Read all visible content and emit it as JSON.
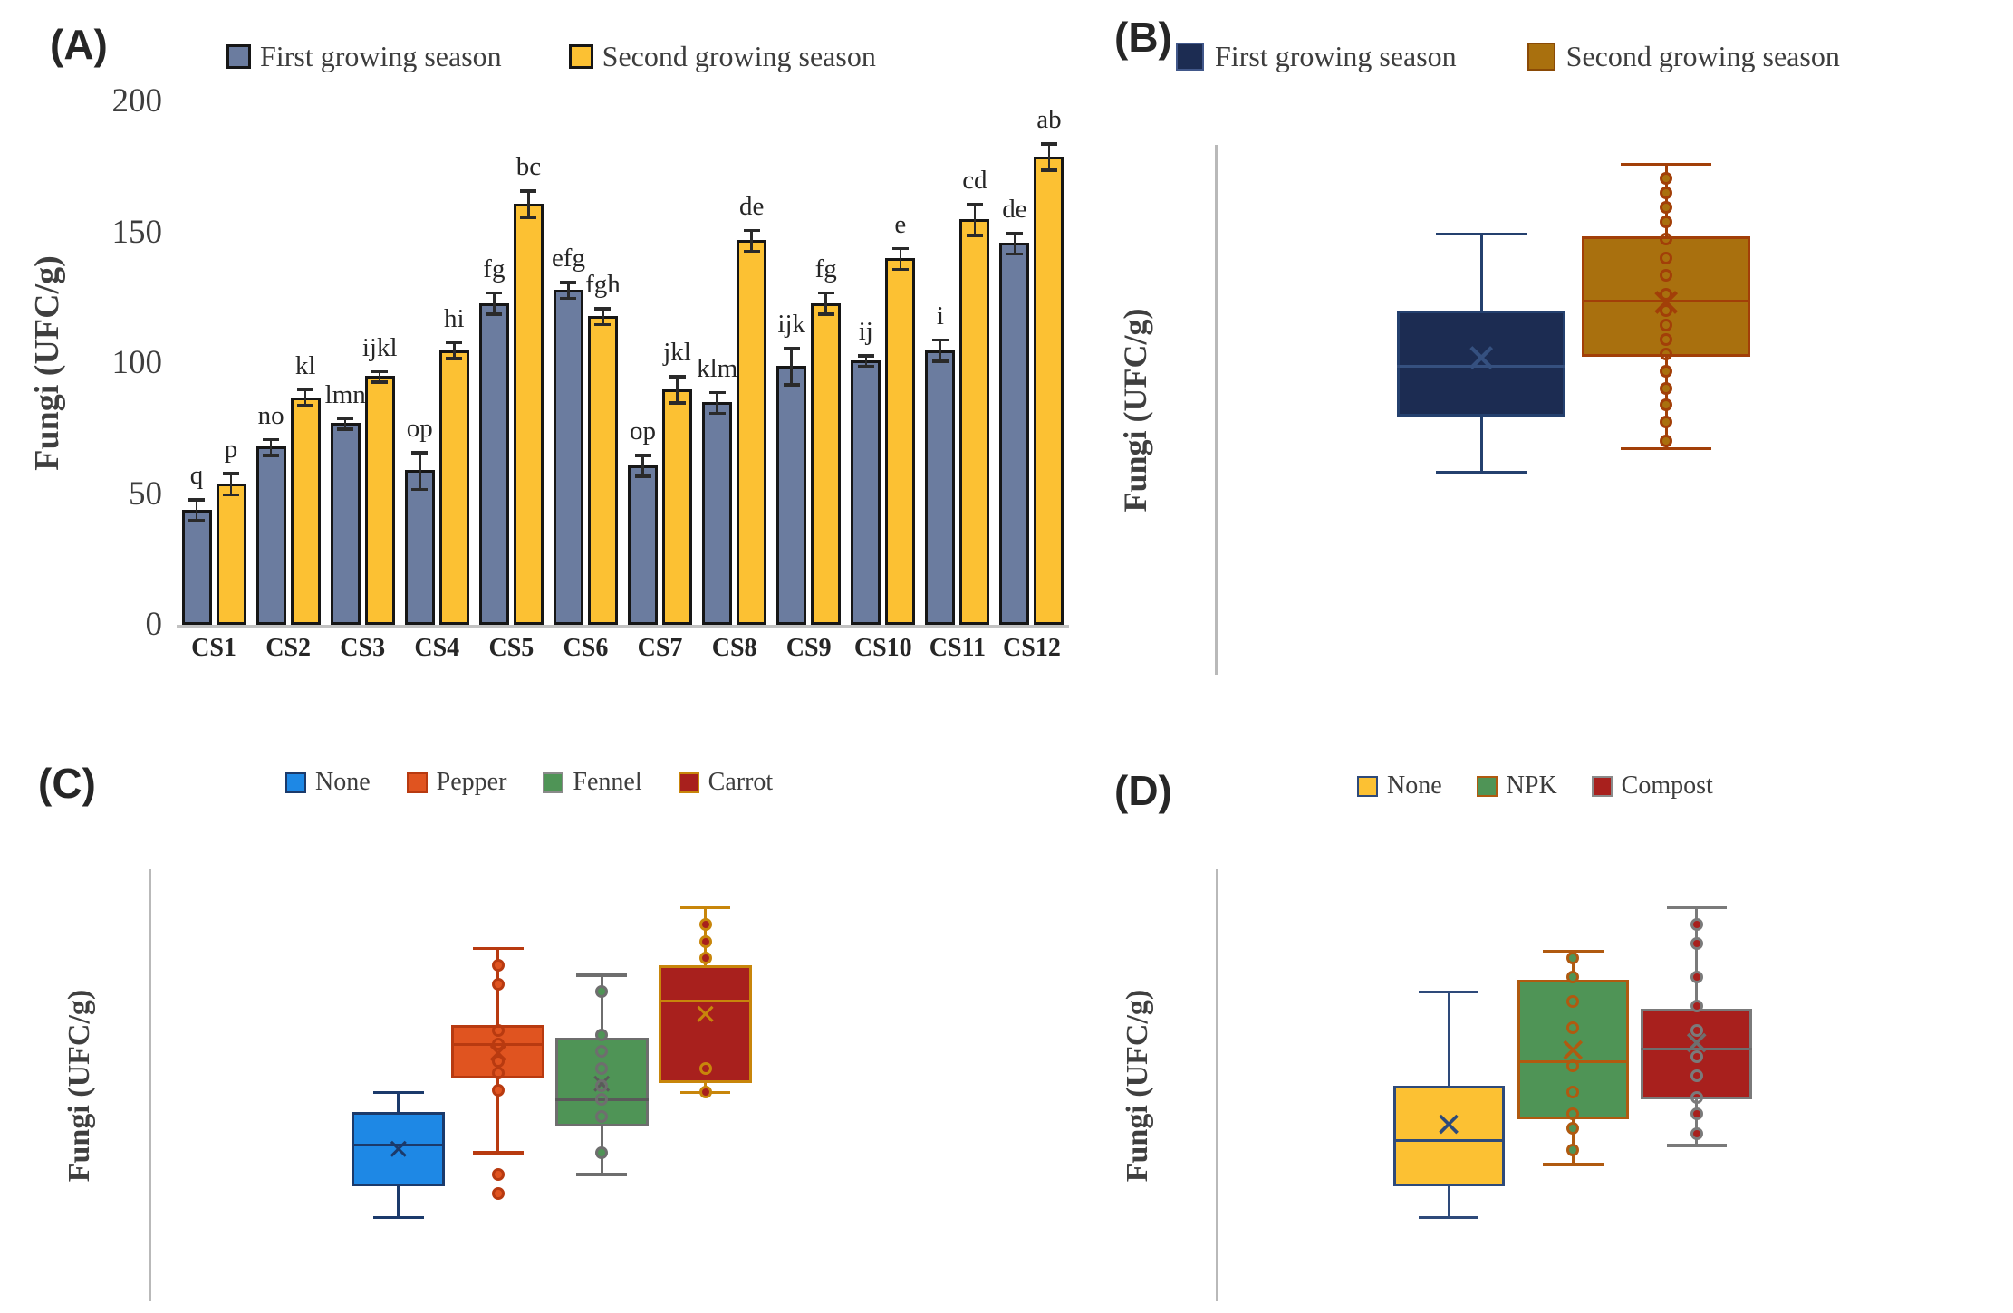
{
  "figure_title": "",
  "axis_color": "#b9b9b9",
  "panels": [
    {
      "label": "(A)",
      "ylabel": "Fungi (UFC/g)",
      "legend": [
        {
          "label": "First growing season",
          "fill": "#6b7c9f",
          "border": "#161616"
        },
        {
          "label": "Second growing season",
          "fill": "#fcc133",
          "border": "#161616"
        }
      ]
    },
    {
      "label": "(B)",
      "ylabel": "Fungi (UFC/g)",
      "legend": [
        {
          "label": "First growing season",
          "fill": "#1c2c52",
          "border": "#42588a"
        },
        {
          "label": "Second growing season",
          "fill": "#a9700e",
          "border": "#8a4a06"
        }
      ]
    },
    {
      "label": "(C)",
      "ylabel": "Fungi (UFC/g)",
      "legend": [
        {
          "label": "None",
          "fill": "#1e88e5",
          "border": "#1b3a6b"
        },
        {
          "label": "Pepper",
          "fill": "#e05420",
          "border": "#b83a10"
        },
        {
          "label": "Fennel",
          "fill": "#4f9456",
          "border": "#8a8a8a"
        },
        {
          "label": "Carrot",
          "fill": "#a8201d",
          "border": "#c8860b"
        }
      ]
    },
    {
      "label": "(D)",
      "ylabel": "Fungi (UFC/g)",
      "legend": [
        {
          "label": "None",
          "fill": "#fcc133",
          "border": "#2e4a7a"
        },
        {
          "label": "NPK",
          "fill": "#4f9456",
          "border": "#b05a10"
        },
        {
          "label": "Compost",
          "fill": "#a8201d",
          "border": "#8a8a8a"
        }
      ]
    }
  ],
  "chart_data": [
    {
      "type": "bar",
      "panel": "A",
      "title": "",
      "xlabel": "",
      "ylabel": "Fungi (UFC/g)",
      "ylim": [
        0,
        200
      ],
      "yticks": [
        0,
        50,
        100,
        150,
        200
      ],
      "grid": false,
      "legend_position": "top",
      "categories": [
        "CS1",
        "CS2",
        "CS3",
        "CS4",
        "CS5",
        "CS6",
        "CS7",
        "CS8",
        "CS9",
        "CS10",
        "CS11",
        "CS12"
      ],
      "series": [
        {
          "name": "First growing season",
          "color": "#6b7c9f",
          "edge": "#161616",
          "values": [
            44,
            68,
            77,
            59,
            123,
            128,
            61,
            85,
            99,
            101,
            105,
            146
          ],
          "errors": [
            4,
            3,
            2,
            7,
            4,
            3,
            4,
            4,
            7,
            2,
            4,
            4
          ],
          "letters": [
            "q",
            "no",
            "lmn",
            "op",
            "fg",
            "efg",
            "op",
            "klm",
            "ijk",
            "ij",
            "i",
            "de"
          ]
        },
        {
          "name": "Second growing season",
          "color": "#fcc133",
          "edge": "#161616",
          "values": [
            54,
            87,
            95,
            105,
            161,
            118,
            90,
            147,
            123,
            140,
            155,
            179
          ],
          "errors": [
            4,
            3,
            2,
            3,
            5,
            3,
            5,
            4,
            4,
            4,
            6,
            5
          ],
          "letters": [
            "p",
            "kl",
            "ijkl",
            "hi",
            "bc",
            "fgh",
            "jkl",
            "de",
            "fg",
            "e",
            "cd",
            "ab"
          ]
        }
      ]
    },
    {
      "type": "box",
      "panel": "B",
      "ylabel": "Fungi (UFC/g)",
      "ylim": [
        0,
        220
      ],
      "grid": false,
      "legend_position": "top",
      "series": [
        {
          "name": "First growing season",
          "fill": "#1c2c52",
          "border": "#24406e",
          "whisker": "#24406e",
          "accent": "#35507f",
          "x": 0.364,
          "box_w": 0.2325,
          "stats": {
            "whisker_low": 84,
            "q1": 107,
            "median": 128,
            "mean": 131,
            "q3": 151,
            "whisker_high": 183
          },
          "dots": [],
          "outliers": []
        },
        {
          "name": "Second growing season",
          "fill": "#a9700e",
          "border": "#a23f08",
          "whisker": "#a23f08",
          "accent": "#a23f08",
          "x": 0.619,
          "box_w": 0.2325,
          "stats": {
            "whisker_low": 94,
            "q1": 132,
            "median": 155,
            "mean": 154,
            "q3": 182,
            "whisker_high": 212
          },
          "dots": [
            206,
            200,
            194,
            188,
            181,
            173,
            166,
            158,
            151,
            145,
            139,
            133,
            126,
            119,
            112,
            105,
            97
          ],
          "outliers": []
        }
      ]
    },
    {
      "type": "box",
      "panel": "C",
      "ylabel": "Fungi (UFC/g)",
      "ylim": [
        0,
        180
      ],
      "grid": false,
      "legend_position": "top",
      "series": [
        {
          "name": "None",
          "fill": "#1e88e5",
          "border": "#1b3a6b",
          "whisker": "#1b3a6b",
          "accent": "#1b3a6b",
          "x": 0.31,
          "box_w": 0.117,
          "stats": {
            "whisker_low": 35,
            "q1": 48,
            "median": 65,
            "mean": 63,
            "q3": 79,
            "whisker_high": 87
          },
          "dots": [],
          "outliers": []
        },
        {
          "name": "Pepper",
          "fill": "#e05420",
          "border": "#b83a10",
          "whisker": "#b83a10",
          "accent": "#b83a10",
          "x": 0.435,
          "box_w": 0.117,
          "stats": {
            "whisker_low": 62,
            "q1": 93,
            "median": 107,
            "mean": 103,
            "q3": 115,
            "whisker_high": 147
          },
          "dots": [
            140,
            132,
            113,
            107,
            100,
            95,
            88
          ],
          "outliers": [
            53,
            45
          ]
        },
        {
          "name": "Fennel",
          "fill": "#4f9456",
          "border": "#6e6e6e",
          "whisker": "#6e6e6e",
          "accent": "#5a5a5a",
          "x": 0.565,
          "box_w": 0.117,
          "stats": {
            "whisker_low": 53,
            "q1": 73,
            "median": 84,
            "mean": 90,
            "q3": 110,
            "whisker_high": 136
          },
          "dots": [
            129,
            111,
            104,
            97,
            90,
            84,
            77,
            62
          ],
          "outliers": []
        },
        {
          "name": "Carrot",
          "fill": "#a8201d",
          "border": "#c8860b",
          "whisker": "#c8860b",
          "accent": "#c8860b",
          "x": 0.695,
          "box_w": 0.117,
          "stats": {
            "whisker_low": 87,
            "q1": 91,
            "median": 125,
            "mean": 119,
            "q3": 140,
            "whisker_high": 164
          },
          "dots": [
            157,
            150,
            143,
            97,
            87
          ],
          "outliers": []
        }
      ]
    },
    {
      "type": "box",
      "panel": "D",
      "ylabel": "Fungi (UFC/g)",
      "ylim": [
        0,
        180
      ],
      "grid": false,
      "legend_position": "top",
      "series": [
        {
          "name": "None",
          "fill": "#fcc133",
          "border": "#2e4a7a",
          "whisker": "#2e4a7a",
          "accent": "#2e4a7a",
          "x": 0.363,
          "box_w": 0.176,
          "stats": {
            "whisker_low": 35,
            "q1": 48,
            "median": 67,
            "mean": 73,
            "q3": 90,
            "whisker_high": 129
          },
          "dots": [],
          "outliers": []
        },
        {
          "name": "NPK",
          "fill": "#4f9456",
          "border": "#b05a10",
          "whisker": "#b05a10",
          "accent": "#b05a10",
          "x": 0.559,
          "box_w": 0.176,
          "stats": {
            "whisker_low": 57,
            "q1": 76,
            "median": 100,
            "mean": 104,
            "q3": 134,
            "whisker_high": 146
          },
          "dots": [
            143,
            135,
            125,
            114,
            98,
            87,
            78,
            72,
            63
          ],
          "outliers": []
        },
        {
          "name": "Compost",
          "fill": "#a8201d",
          "border": "#7a7a7a",
          "whisker": "#7a7a7a",
          "accent": "#6e6e6e",
          "x": 0.754,
          "box_w": 0.176,
          "stats": {
            "whisker_low": 65,
            "q1": 84,
            "median": 105,
            "mean": 107,
            "q3": 122,
            "whisker_high": 164
          },
          "dots": [
            157,
            149,
            135,
            123,
            113,
            102,
            94,
            85,
            78,
            70
          ],
          "outliers": []
        }
      ]
    }
  ]
}
